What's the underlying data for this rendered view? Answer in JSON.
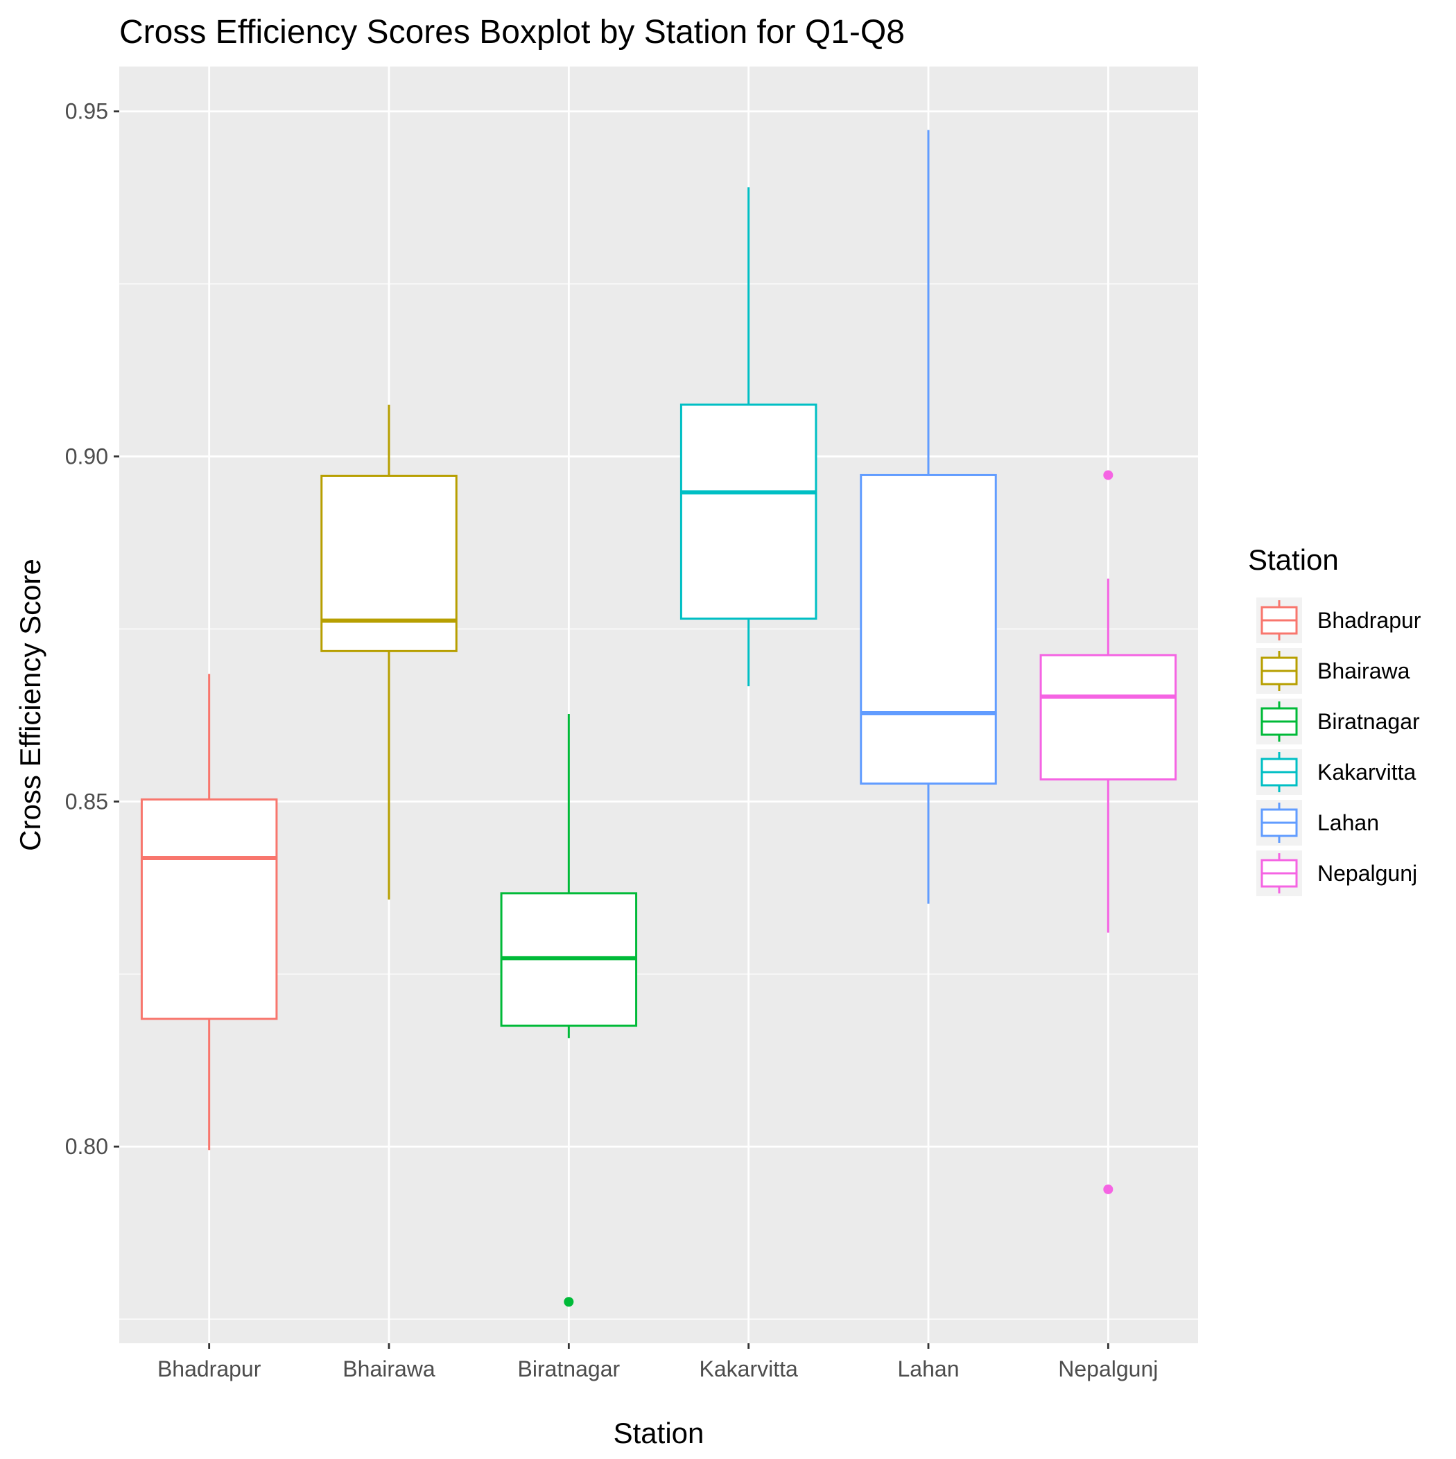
{
  "chart_data": {
    "type": "boxplot",
    "title": "Cross Efficiency Scores Boxplot by Station for Q1-Q8",
    "xlabel": "Station",
    "ylabel": "Cross Efficiency Score",
    "ylim": [
      0.7715,
      0.9565
    ],
    "yticks": [
      0.8,
      0.85,
      0.9,
      0.95
    ],
    "ytick_labels": [
      "0.80",
      "0.85",
      "0.90",
      "0.95"
    ],
    "grid": true,
    "legend": {
      "title": "Station",
      "placement": "right"
    },
    "categories": [
      "Bhadrapur",
      "Bhairawa",
      "Biratnagar",
      "Kakarvitta",
      "Lahan",
      "Nepalgunj"
    ],
    "series": [
      {
        "name": "Bhadrapur",
        "color": "#F8766D",
        "whisker_low": 0.7995,
        "q1": 0.8185,
        "median": 0.8418,
        "q3": 0.8503,
        "whisker_high": 0.8685,
        "outliers": []
      },
      {
        "name": "Bhairawa",
        "color": "#B79F00",
        "whisker_low": 0.8358,
        "q1": 0.8718,
        "median": 0.8762,
        "q3": 0.8972,
        "whisker_high": 0.9075,
        "outliers": []
      },
      {
        "name": "Biratnagar",
        "color": "#00BA38",
        "whisker_low": 0.8157,
        "q1": 0.8175,
        "median": 0.8273,
        "q3": 0.8367,
        "whisker_high": 0.8627,
        "outliers": [
          0.7775
        ]
      },
      {
        "name": "Kakarvitta",
        "color": "#00BFC4",
        "whisker_low": 0.8667,
        "q1": 0.8765,
        "median": 0.8948,
        "q3": 0.9075,
        "whisker_high": 0.939,
        "outliers": []
      },
      {
        "name": "Lahan",
        "color": "#619CFF",
        "whisker_low": 0.8352,
        "q1": 0.8526,
        "median": 0.8628,
        "q3": 0.8973,
        "whisker_high": 0.9473,
        "outliers": []
      },
      {
        "name": "Nepalgunj",
        "color": "#F564E3",
        "whisker_low": 0.831,
        "q1": 0.8532,
        "median": 0.8652,
        "q3": 0.8712,
        "whisker_high": 0.8823,
        "outliers": [
          0.8973,
          0.7938
        ]
      }
    ]
  }
}
